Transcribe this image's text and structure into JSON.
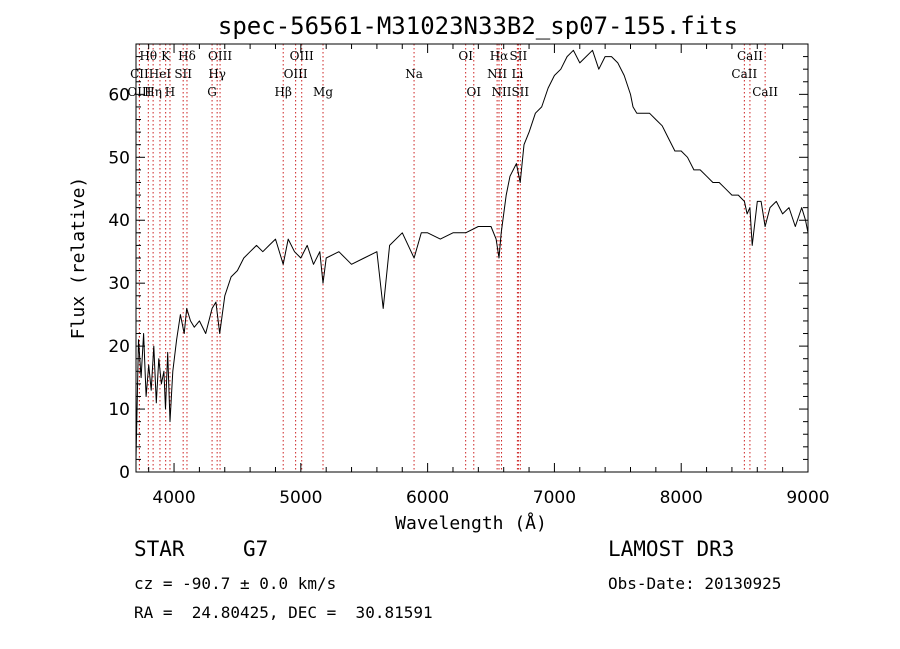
{
  "chart_data": {
    "type": "line",
    "title": "spec-56561-M31023N33B2_sp07-155.fits",
    "xlabel": "Wavelength (Å)",
    "ylabel": "Flux (relative)",
    "xlim": [
      3700,
      9000
    ],
    "ylim": [
      0,
      68
    ],
    "x_ticks": [
      4000,
      5000,
      6000,
      7000,
      8000,
      9000
    ],
    "y_ticks": [
      0,
      10,
      20,
      30,
      40,
      50,
      60
    ],
    "series": [
      {
        "name": "flux",
        "x": [
          3700,
          3720,
          3740,
          3760,
          3780,
          3800,
          3820,
          3840,
          3860,
          3880,
          3900,
          3920,
          3933,
          3950,
          3968,
          3990,
          4020,
          4050,
          4080,
          4100,
          4130,
          4160,
          4200,
          4250,
          4300,
          4330,
          4360,
          4400,
          4450,
          4500,
          4550,
          4600,
          4650,
          4700,
          4750,
          4800,
          4861,
          4900,
          4950,
          5000,
          5050,
          5100,
          5150,
          5175,
          5200,
          5300,
          5400,
          5500,
          5600,
          5650,
          5700,
          5800,
          5893,
          5950,
          6000,
          6100,
          6200,
          6300,
          6400,
          6450,
          6500,
          6540,
          6563,
          6580,
          6620,
          6650,
          6700,
          6730,
          6760,
          6800,
          6850,
          6900,
          6950,
          7000,
          7050,
          7100,
          7150,
          7200,
          7250,
          7300,
          7350,
          7400,
          7450,
          7500,
          7550,
          7600,
          7620,
          7650,
          7700,
          7750,
          7800,
          7850,
          7900,
          7950,
          8000,
          8050,
          8100,
          8150,
          8200,
          8250,
          8300,
          8350,
          8400,
          8450,
          8498,
          8520,
          8542,
          8560,
          8600,
          8630,
          8662,
          8700,
          8750,
          8800,
          8850,
          8900,
          8950,
          8980,
          9000
        ],
        "y": [
          2,
          21,
          15,
          22,
          12,
          17,
          13,
          20,
          11,
          18,
          14,
          16,
          10,
          19,
          8,
          16,
          21,
          25,
          22,
          26,
          24,
          23,
          24,
          22,
          26,
          27,
          22,
          28,
          31,
          32,
          34,
          35,
          36,
          35,
          36,
          37,
          33,
          37,
          35,
          34,
          36,
          33,
          35,
          30,
          34,
          35,
          33,
          34,
          35,
          26,
          36,
          38,
          34,
          38,
          38,
          37,
          38,
          38,
          39,
          39,
          39,
          37,
          34,
          38,
          44,
          47,
          49,
          46,
          52,
          54,
          57,
          58,
          61,
          63,
          64,
          66,
          67,
          65,
          66,
          67,
          64,
          66,
          66,
          65,
          63,
          60,
          58,
          57,
          57,
          57,
          56,
          55,
          53,
          51,
          51,
          50,
          48,
          48,
          47,
          46,
          46,
          45,
          44,
          44,
          43,
          41,
          42,
          36,
          43,
          43,
          39,
          42,
          43,
          41,
          42,
          39,
          42,
          40,
          38
        ]
      }
    ],
    "spectral_lines": [
      {
        "name": "Hθ",
        "wave": 3797,
        "row": 0
      },
      {
        "name": "CII",
        "wave": 3727,
        "row": 1
      },
      {
        "name": "OIII",
        "wave": 3727,
        "row": 2
      },
      {
        "name": "HeI",
        "wave": 3889,
        "row": 1
      },
      {
        "name": "Hη",
        "wave": 3835,
        "row": 2
      },
      {
        "name": "K",
        "wave": 3934,
        "row": 0
      },
      {
        "name": "SII",
        "wave": 4072,
        "row": 1
      },
      {
        "name": "H",
        "wave": 3968,
        "row": 2
      },
      {
        "name": "Hδ",
        "wave": 4102,
        "row": 0
      },
      {
        "name": "OIII",
        "wave": 4363,
        "row": 0
      },
      {
        "name": "Hγ",
        "wave": 4340,
        "row": 1
      },
      {
        "name": "G",
        "wave": 4300,
        "row": 2
      },
      {
        "name": "Hβ",
        "wave": 4861,
        "row": 2
      },
      {
        "name": "OIII",
        "wave": 5007,
        "row": 0
      },
      {
        "name": "OIII",
        "wave": 4959,
        "row": 1
      },
      {
        "name": "Mg",
        "wave": 5175,
        "row": 2
      },
      {
        "name": "Na",
        "wave": 5893,
        "row": 1
      },
      {
        "name": "OI",
        "wave": 6300,
        "row": 0
      },
      {
        "name": "OI",
        "wave": 6364,
        "row": 2
      },
      {
        "name": "Hα",
        "wave": 6563,
        "row": 0
      },
      {
        "name": "NII",
        "wave": 6548,
        "row": 1
      },
      {
        "name": "NII",
        "wave": 6583,
        "row": 2
      },
      {
        "name": "SII",
        "wave": 6716,
        "row": 0
      },
      {
        "name": "Li",
        "wave": 6708,
        "row": 1
      },
      {
        "name": "SII",
        "wave": 6731,
        "row": 2
      },
      {
        "name": "CaII",
        "wave": 8542,
        "row": 0
      },
      {
        "name": "CaII",
        "wave": 8498,
        "row": 1
      },
      {
        "name": "CaII",
        "wave": 8662,
        "row": 2
      }
    ]
  },
  "info": {
    "class_label": "STAR",
    "subclass": "G7",
    "redshift": "cz = -90.7 ± 0.0 km/s",
    "coords": "RA =  24.80425, DEC =  30.81591",
    "survey": "LAMOST DR3",
    "obs_date": "Obs-Date: 20130925"
  },
  "colors": {
    "line": "#000000",
    "marker": "#cc2222",
    "axis": "#000000"
  }
}
